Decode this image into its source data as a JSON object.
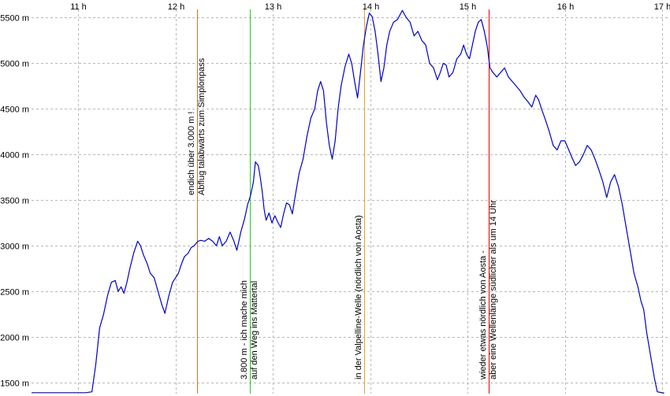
{
  "chart_data": {
    "type": "line",
    "title": "",
    "xlabel": "",
    "ylabel": "",
    "x_unit": "h",
    "xlim": [
      10.52,
      17.08
    ],
    "ylim": [
      1380,
      5590
    ],
    "x_ticks": [
      {
        "value": 11,
        "label": "11 h"
      },
      {
        "value": 12,
        "label": "12 h"
      },
      {
        "value": 13,
        "label": "13 h"
      },
      {
        "value": 14,
        "label": "14 h"
      },
      {
        "value": 15,
        "label": "15 h"
      },
      {
        "value": 16,
        "label": "16 h"
      },
      {
        "value": 17,
        "label": "17 h"
      }
    ],
    "y_ticks": [
      {
        "value": 1500,
        "label": "1500 m"
      },
      {
        "value": 2000,
        "label": "2000 m"
      },
      {
        "value": 2500,
        "label": "2500 m"
      },
      {
        "value": 3000,
        "label": "3000 m"
      },
      {
        "value": 3500,
        "label": "3500 m"
      },
      {
        "value": 4000,
        "label": "4000 m"
      },
      {
        "value": 4500,
        "label": "4500 m"
      },
      {
        "value": 5000,
        "label": "5000 m"
      },
      {
        "value": 5500,
        "label": "5500 m"
      }
    ],
    "grid": true,
    "series": [
      {
        "color": "#0000cc",
        "points": [
          [
            10.52,
            1390
          ],
          [
            11.08,
            1390
          ],
          [
            11.14,
            1400
          ],
          [
            11.18,
            1700
          ],
          [
            11.22,
            2100
          ],
          [
            11.26,
            2250
          ],
          [
            11.3,
            2450
          ],
          [
            11.34,
            2600
          ],
          [
            11.38,
            2620
          ],
          [
            11.41,
            2500
          ],
          [
            11.44,
            2550
          ],
          [
            11.47,
            2480
          ],
          [
            11.5,
            2600
          ],
          [
            11.53,
            2750
          ],
          [
            11.57,
            2920
          ],
          [
            11.61,
            3050
          ],
          [
            11.64,
            3000
          ],
          [
            11.67,
            2900
          ],
          [
            11.71,
            2800
          ],
          [
            11.74,
            2700
          ],
          [
            11.78,
            2650
          ],
          [
            11.82,
            2500
          ],
          [
            11.86,
            2350
          ],
          [
            11.89,
            2260
          ],
          [
            11.93,
            2450
          ],
          [
            11.97,
            2600
          ],
          [
            12.0,
            2650
          ],
          [
            12.03,
            2700
          ],
          [
            12.06,
            2800
          ],
          [
            12.09,
            2880
          ],
          [
            12.13,
            2920
          ],
          [
            12.16,
            2980
          ],
          [
            12.19,
            3000
          ],
          [
            12.23,
            3050
          ],
          [
            12.26,
            3060
          ],
          [
            12.3,
            3050
          ],
          [
            12.34,
            3080
          ],
          [
            12.38,
            3050
          ],
          [
            12.42,
            3000
          ],
          [
            12.45,
            3100
          ],
          [
            12.48,
            3000
          ],
          [
            12.52,
            3050
          ],
          [
            12.56,
            3150
          ],
          [
            12.6,
            3050
          ],
          [
            12.63,
            2950
          ],
          [
            12.67,
            3150
          ],
          [
            12.71,
            3300
          ],
          [
            12.74,
            3450
          ],
          [
            12.77,
            3550
          ],
          [
            12.8,
            3700
          ],
          [
            12.82,
            3920
          ],
          [
            12.85,
            3880
          ],
          [
            12.87,
            3750
          ],
          [
            12.89,
            3600
          ],
          [
            12.91,
            3400
          ],
          [
            12.93,
            3280
          ],
          [
            12.96,
            3360
          ],
          [
            12.99,
            3250
          ],
          [
            13.02,
            3330
          ],
          [
            13.05,
            3260
          ],
          [
            13.08,
            3200
          ],
          [
            13.11,
            3350
          ],
          [
            13.14,
            3470
          ],
          [
            13.17,
            3450
          ],
          [
            13.2,
            3350
          ],
          [
            13.23,
            3550
          ],
          [
            13.27,
            3800
          ],
          [
            13.31,
            3950
          ],
          [
            13.35,
            4200
          ],
          [
            13.39,
            4400
          ],
          [
            13.43,
            4500
          ],
          [
            13.46,
            4700
          ],
          [
            13.49,
            4800
          ],
          [
            13.52,
            4700
          ],
          [
            13.55,
            4350
          ],
          [
            13.58,
            4100
          ],
          [
            13.61,
            3950
          ],
          [
            13.64,
            4150
          ],
          [
            13.67,
            4500
          ],
          [
            13.7,
            4750
          ],
          [
            13.74,
            4960
          ],
          [
            13.78,
            5100
          ],
          [
            13.81,
            5000
          ],
          [
            13.84,
            4800
          ],
          [
            13.87,
            4620
          ],
          [
            13.9,
            4900
          ],
          [
            13.93,
            5200
          ],
          [
            13.96,
            5400
          ],
          [
            13.99,
            5550
          ],
          [
            14.02,
            5510
          ],
          [
            14.05,
            5350
          ],
          [
            14.08,
            5100
          ],
          [
            14.11,
            4800
          ],
          [
            14.14,
            4950
          ],
          [
            14.17,
            5200
          ],
          [
            14.2,
            5350
          ],
          [
            14.24,
            5450
          ],
          [
            14.28,
            5480
          ],
          [
            14.33,
            5580
          ],
          [
            14.37,
            5500
          ],
          [
            14.41,
            5450
          ],
          [
            14.45,
            5300
          ],
          [
            14.49,
            5350
          ],
          [
            14.53,
            5250
          ],
          [
            14.57,
            5200
          ],
          [
            14.61,
            5000
          ],
          [
            14.65,
            4950
          ],
          [
            14.69,
            4820
          ],
          [
            14.72,
            4900
          ],
          [
            14.75,
            5000
          ],
          [
            14.78,
            4980
          ],
          [
            14.81,
            4850
          ],
          [
            14.85,
            4900
          ],
          [
            14.89,
            5050
          ],
          [
            14.93,
            5100
          ],
          [
            14.96,
            5200
          ],
          [
            14.99,
            5100
          ],
          [
            15.02,
            5050
          ],
          [
            15.05,
            5200
          ],
          [
            15.08,
            5350
          ],
          [
            15.11,
            5450
          ],
          [
            15.14,
            5480
          ],
          [
            15.17,
            5360
          ],
          [
            15.2,
            5200
          ],
          [
            15.23,
            4950
          ],
          [
            15.26,
            4900
          ],
          [
            15.3,
            4850
          ],
          [
            15.34,
            4900
          ],
          [
            15.38,
            4950
          ],
          [
            15.42,
            4850
          ],
          [
            15.46,
            4800
          ],
          [
            15.5,
            4750
          ],
          [
            15.54,
            4700
          ],
          [
            15.58,
            4630
          ],
          [
            15.62,
            4580
          ],
          [
            15.66,
            4520
          ],
          [
            15.7,
            4650
          ],
          [
            15.73,
            4600
          ],
          [
            15.76,
            4500
          ],
          [
            15.8,
            4380
          ],
          [
            15.84,
            4250
          ],
          [
            15.88,
            4100
          ],
          [
            15.92,
            4050
          ],
          [
            15.96,
            4150
          ],
          [
            16.0,
            4150
          ],
          [
            16.04,
            4050
          ],
          [
            16.08,
            3950
          ],
          [
            16.11,
            3880
          ],
          [
            16.15,
            3920
          ],
          [
            16.19,
            4000
          ],
          [
            16.23,
            4100
          ],
          [
            16.27,
            4050
          ],
          [
            16.31,
            3950
          ],
          [
            16.35,
            3830
          ],
          [
            16.39,
            3700
          ],
          [
            16.43,
            3530
          ],
          [
            16.47,
            3700
          ],
          [
            16.51,
            3780
          ],
          [
            16.55,
            3650
          ],
          [
            16.59,
            3450
          ],
          [
            16.63,
            3200
          ],
          [
            16.67,
            2950
          ],
          [
            16.71,
            2700
          ],
          [
            16.75,
            2550
          ],
          [
            16.78,
            2400
          ],
          [
            16.81,
            2300
          ],
          [
            16.84,
            2050
          ],
          [
            16.88,
            1800
          ],
          [
            16.92,
            1550
          ],
          [
            16.95,
            1400
          ],
          [
            17.02,
            1385
          ]
        ]
      }
    ],
    "markers": [
      {
        "x": 12.22,
        "color": "#e07020",
        "lines": [
          "endich über 3.000 m !",
          "Abflug talabwärts zum Simplonpass"
        ]
      },
      {
        "x": 12.76,
        "color": "#22cc22",
        "lines": [
          "3.800 m - ich mache mich",
          "auf den Weg ins Mattertal"
        ]
      },
      {
        "x": 13.94,
        "color": "#e0a030",
        "lines": [
          "in der Valpelline-Welle (nördlich von Aosta)"
        ]
      },
      {
        "x": 15.22,
        "color": "#e00000",
        "lines": [
          "wieder etwas nördlich von Aosta -",
          "aber eine Wellenlänge südlicher als um 14 Uhr"
        ]
      }
    ]
  }
}
